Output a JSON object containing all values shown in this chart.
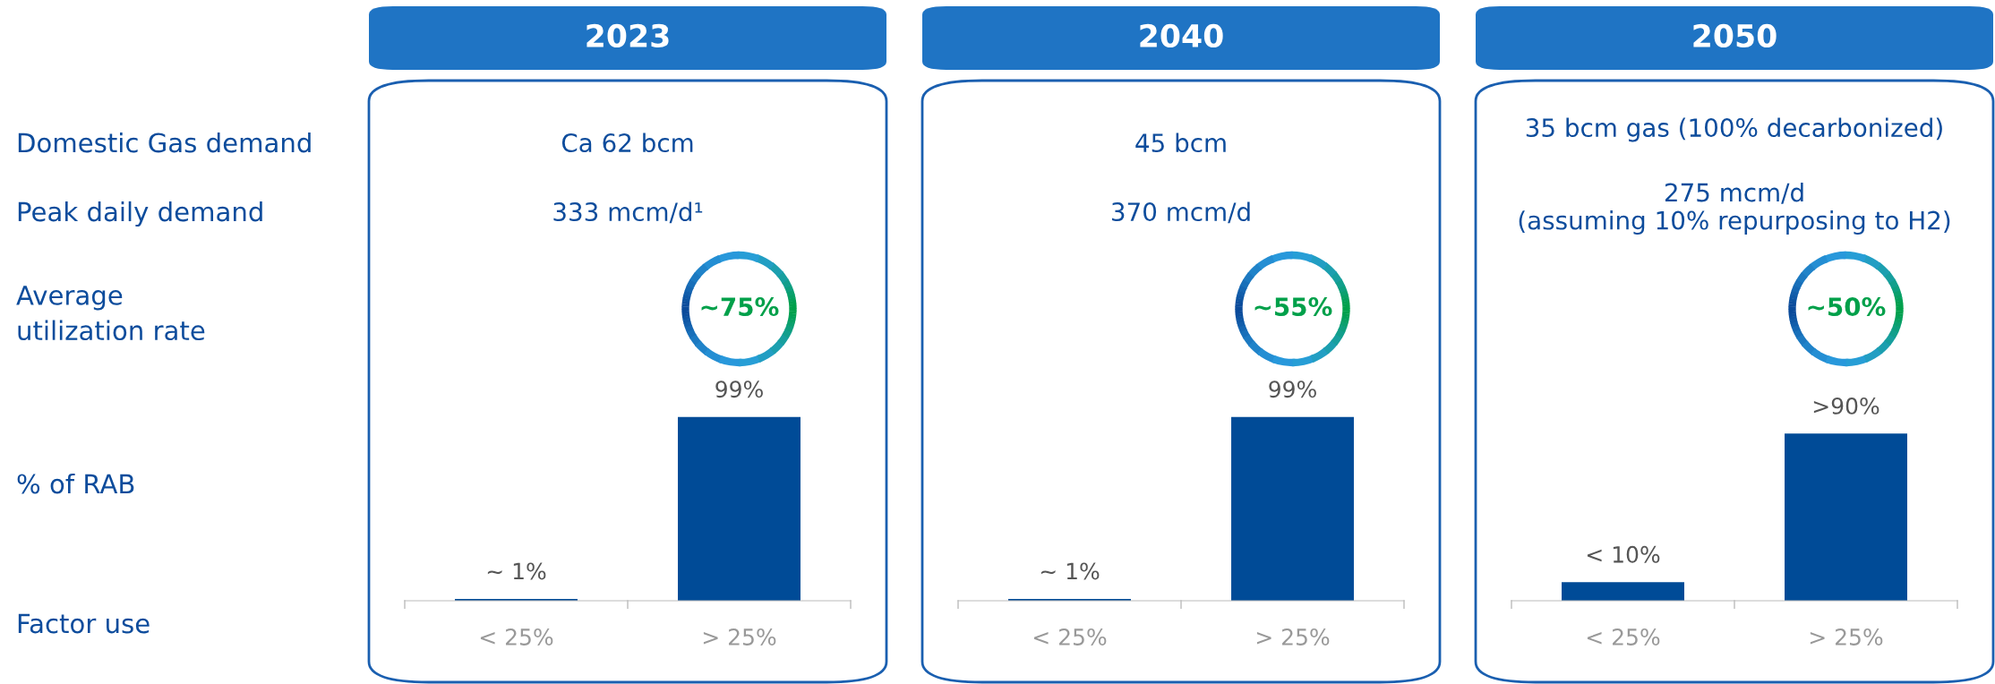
{
  "chart_data": [
    {
      "type": "other",
      "annotations": [
        "Domestic Gas demand",
        "Peak daily demand",
        "Average\nutilization rate",
        "% of RAB",
        "Factor use"
      ]
    },
    {
      "type": "bar",
      "title": "2023",
      "categories": [
        "< 25%",
        "> 25%"
      ],
      "values": [
        1,
        99
      ],
      "value_labels": [
        "~ 1%",
        "99%"
      ],
      "color": "#004b97",
      "annotations": [
        "Ca 62 bcm",
        "333 mcm/d¹",
        "~75%"
      ]
    },
    {
      "type": "bar",
      "title": "2040",
      "categories": [
        "< 25%",
        "> 25%"
      ],
      "values": [
        1,
        99
      ],
      "value_labels": [
        "~ 1%",
        "99%"
      ],
      "color": "#004b97",
      "annotations": [
        "45 bcm",
        "370 mcm/d",
        "~55%"
      ]
    },
    {
      "type": "bar",
      "title": "2050",
      "categories": [
        "< 25%",
        "> 25%"
      ],
      "values": [
        10,
        90
      ],
      "value_labels": [
        "< 10%",
        ">90%"
      ],
      "color": "#004b97",
      "annotations": [
        "35 bcm gas (100% decarbonized)",
        "275 mcm/d\n(assuming 10% repurposing to H2)",
        "~50%"
      ]
    }
  ]
}
